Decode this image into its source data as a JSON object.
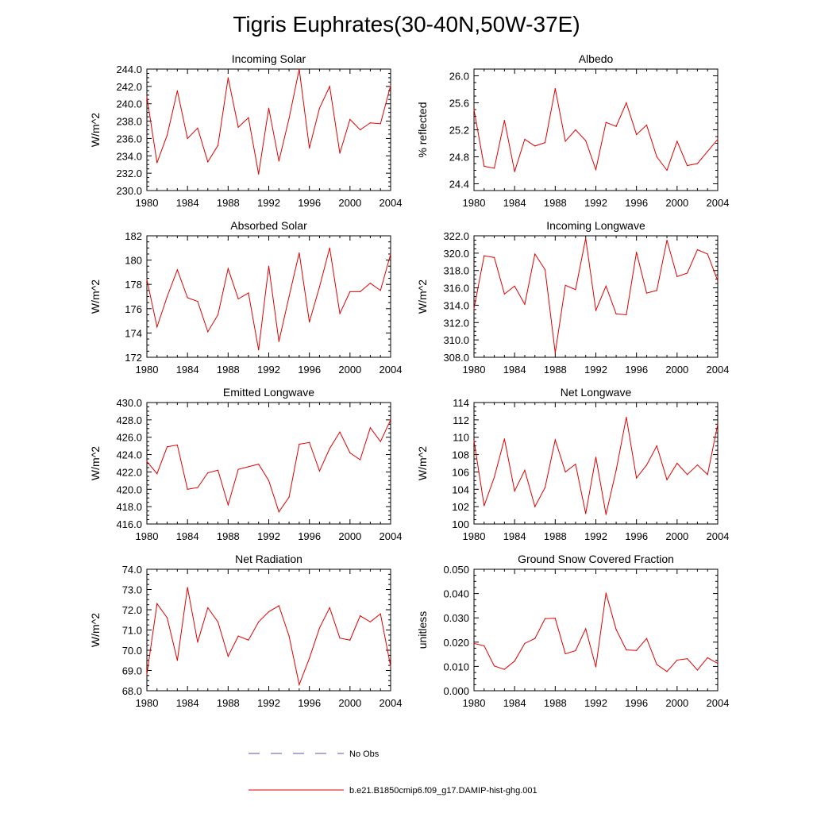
{
  "title": "Tigris Euphrates(30-40N,50W-37E)",
  "legend": {
    "placement": "bottom-center",
    "items": [
      {
        "label": "No Obs",
        "color": "#5555aa",
        "dash": true
      },
      {
        "label": "b.e21.B1850cmip6.f09_g17.DAMIP-hist-ghg.001",
        "color": "#e00000",
        "dash": false
      }
    ]
  },
  "chart_data": [
    {
      "type": "line",
      "title": "Incoming Solar",
      "ylabel": "W/m^2",
      "xlim": [
        1980,
        2004
      ],
      "ylim": [
        230.0,
        244.0
      ],
      "yticks": [
        "230.0",
        "232.0",
        "234.0",
        "236.0",
        "238.0",
        "240.0",
        "242.0",
        "244.0"
      ],
      "xticks": [
        "1980",
        "1984",
        "1988",
        "1992",
        "1996",
        "2000",
        "2004"
      ],
      "x": [
        1980,
        1981,
        1982,
        1983,
        1984,
        1985,
        1986,
        1987,
        1988,
        1989,
        1990,
        1991,
        1992,
        1993,
        1994,
        1995,
        1996,
        1997,
        1998,
        1999,
        2000,
        2001,
        2002,
        2003,
        2004
      ],
      "series": [
        {
          "color": "#e00000",
          "values": [
            240.8,
            233.2,
            236.4,
            241.5,
            236.0,
            237.2,
            233.3,
            235.2,
            243.0,
            237.3,
            238.4,
            231.9,
            239.5,
            233.4,
            238.3,
            244.0,
            234.9,
            239.5,
            242.0,
            234.3,
            238.2,
            237.0,
            237.8,
            237.7,
            242.1
          ]
        }
      ]
    },
    {
      "type": "line",
      "title": "Albedo",
      "ylabel": "% reflected",
      "xlim": [
        1980,
        2004
      ],
      "ylim": [
        24.3,
        26.1
      ],
      "yticks": [
        "24.4",
        "24.8",
        "25.2",
        "25.6",
        "26.0"
      ],
      "xticks": [
        "1980",
        "1984",
        "1988",
        "1992",
        "1996",
        "2000",
        "2004"
      ],
      "x": [
        1980,
        1981,
        1982,
        1983,
        1984,
        1985,
        1986,
        1987,
        1988,
        1989,
        1990,
        1991,
        1992,
        1993,
        1994,
        1995,
        1996,
        1997,
        1998,
        1999,
        2000,
        2001,
        2002,
        2003,
        2004
      ],
      "series": [
        {
          "color": "#e00000",
          "values": [
            25.5,
            24.66,
            24.63,
            25.34,
            24.58,
            25.06,
            24.96,
            25.01,
            25.81,
            25.03,
            25.2,
            25.04,
            24.61,
            25.31,
            25.25,
            25.6,
            25.13,
            25.27,
            24.8,
            24.6,
            25.03,
            24.67,
            24.7,
            24.88,
            25.06
          ]
        }
      ]
    },
    {
      "type": "line",
      "title": "Absorbed Solar",
      "ylabel": "W/m^2",
      "xlim": [
        1980,
        2004
      ],
      "ylim": [
        172,
        182
      ],
      "yticks": [
        "172",
        "174",
        "176",
        "178",
        "180",
        "182"
      ],
      "xticks": [
        "1980",
        "1984",
        "1988",
        "1992",
        "1996",
        "2000",
        "2004"
      ],
      "x": [
        1980,
        1981,
        1982,
        1983,
        1984,
        1985,
        1986,
        1987,
        1988,
        1989,
        1990,
        1991,
        1992,
        1993,
        1994,
        1995,
        1996,
        1997,
        1998,
        1999,
        2000,
        2001,
        2002,
        2003,
        2004
      ],
      "series": [
        {
          "color": "#e00000",
          "values": [
            178.4,
            174.5,
            177.0,
            179.2,
            176.9,
            176.6,
            174.1,
            175.5,
            179.3,
            176.8,
            177.3,
            172.6,
            179.5,
            173.3,
            177.0,
            180.6,
            174.9,
            177.8,
            181.0,
            175.6,
            177.4,
            177.4,
            178.1,
            177.5,
            180.5
          ]
        }
      ]
    },
    {
      "type": "line",
      "title": "Incoming Longwave",
      "ylabel": "W/m^2",
      "xlim": [
        1980,
        2004
      ],
      "ylim": [
        308.0,
        322.0
      ],
      "yticks": [
        "308.0",
        "310.0",
        "312.0",
        "314.0",
        "316.0",
        "318.0",
        "320.0",
        "322.0"
      ],
      "xticks": [
        "1980",
        "1984",
        "1988",
        "1992",
        "1996",
        "2000",
        "2004"
      ],
      "x": [
        1980,
        1981,
        1982,
        1983,
        1984,
        1985,
        1986,
        1987,
        1988,
        1989,
        1990,
        1991,
        1992,
        1993,
        1994,
        1995,
        1996,
        1997,
        1998,
        1999,
        2000,
        2001,
        2002,
        2003,
        2004
      ],
      "series": [
        {
          "color": "#e00000",
          "values": [
            313.6,
            319.7,
            319.5,
            315.3,
            316.2,
            314.1,
            319.9,
            318.1,
            308.5,
            316.3,
            315.8,
            321.7,
            313.4,
            316.2,
            313.0,
            312.9,
            320.1,
            315.4,
            315.7,
            321.5,
            317.3,
            317.7,
            320.4,
            319.9,
            316.8
          ]
        }
      ]
    },
    {
      "type": "line",
      "title": "Emitted Longwave",
      "ylabel": "W/m^2",
      "xlim": [
        1980,
        2004
      ],
      "ylim": [
        416.0,
        430.0
      ],
      "yticks": [
        "416.0",
        "418.0",
        "420.0",
        "422.0",
        "424.0",
        "426.0",
        "428.0",
        "430.0"
      ],
      "xticks": [
        "1980",
        "1984",
        "1988",
        "1992",
        "1996",
        "2000",
        "2004"
      ],
      "x": [
        1980,
        1981,
        1982,
        1983,
        1984,
        1985,
        1986,
        1987,
        1988,
        1989,
        1990,
        1991,
        1992,
        1993,
        1994,
        1995,
        1996,
        1997,
        1998,
        1999,
        2000,
        2001,
        2002,
        2003,
        2004
      ],
      "series": [
        {
          "color": "#e00000",
          "values": [
            423.2,
            421.8,
            424.9,
            425.1,
            420.0,
            420.2,
            421.9,
            422.2,
            418.2,
            422.3,
            422.6,
            422.9,
            421.0,
            417.4,
            419.1,
            425.2,
            425.4,
            422.1,
            424.7,
            426.6,
            424.2,
            423.4,
            427.1,
            425.5,
            428.0
          ]
        }
      ]
    },
    {
      "type": "line",
      "title": "Net Longwave",
      "ylabel": "W/m^2",
      "xlim": [
        1980,
        2004
      ],
      "ylim": [
        100,
        114
      ],
      "yticks": [
        "100",
        "102",
        "104",
        "106",
        "108",
        "110",
        "112",
        "114"
      ],
      "xticks": [
        "1980",
        "1984",
        "1988",
        "1992",
        "1996",
        "2000",
        "2004"
      ],
      "x": [
        1980,
        1981,
        1982,
        1983,
        1984,
        1985,
        1986,
        1987,
        1988,
        1989,
        1990,
        1991,
        1992,
        1993,
        1994,
        1995,
        1996,
        1997,
        1998,
        1999,
        2000,
        2001,
        2002,
        2003,
        2004
      ],
      "series": [
        {
          "color": "#e00000",
          "values": [
            109.6,
            102.1,
            105.4,
            109.8,
            103.8,
            106.2,
            102.0,
            104.2,
            109.7,
            106.0,
            106.9,
            101.2,
            107.7,
            101.1,
            106.2,
            112.3,
            105.3,
            106.8,
            109.0,
            105.1,
            107.0,
            105.7,
            106.8,
            105.7,
            111.5
          ]
        }
      ]
    },
    {
      "type": "line",
      "title": "Net Radiation",
      "ylabel": "W/m^2",
      "xlim": [
        1980,
        2004
      ],
      "ylim": [
        68.0,
        74.0
      ],
      "yticks": [
        "68.0",
        "69.0",
        "70.0",
        "71.0",
        "72.0",
        "73.0",
        "74.0"
      ],
      "xticks": [
        "1980",
        "1984",
        "1988",
        "1992",
        "1996",
        "2000",
        "2004"
      ],
      "x": [
        1980,
        1981,
        1982,
        1983,
        1984,
        1985,
        1986,
        1987,
        1988,
        1989,
        1990,
        1991,
        1992,
        1993,
        1994,
        1995,
        1996,
        1997,
        1998,
        1999,
        2000,
        2001,
        2002,
        2003,
        2004
      ],
      "series": [
        {
          "color": "#e00000",
          "values": [
            68.8,
            72.3,
            71.6,
            69.5,
            73.1,
            70.4,
            72.1,
            71.4,
            69.7,
            70.7,
            70.5,
            71.4,
            71.9,
            72.2,
            70.7,
            68.3,
            69.6,
            71.1,
            72.1,
            70.6,
            70.5,
            71.7,
            71.4,
            71.8,
            69.2
          ]
        }
      ]
    },
    {
      "type": "line",
      "title": "Ground Snow Covered Fraction",
      "ylabel": "unitless",
      "xlim": [
        1980,
        2004
      ],
      "ylim": [
        0.0,
        0.05
      ],
      "yticks": [
        "0.000",
        "0.010",
        "0.020",
        "0.030",
        "0.040",
        "0.050"
      ],
      "xticks": [
        "1980",
        "1984",
        "1988",
        "1992",
        "1996",
        "2000",
        "2004"
      ],
      "x": [
        1980,
        1981,
        1982,
        1983,
        1984,
        1985,
        1986,
        1987,
        1988,
        1989,
        1990,
        1991,
        1992,
        1993,
        1994,
        1995,
        1996,
        1997,
        1998,
        1999,
        2000,
        2001,
        2002,
        2003,
        2004
      ],
      "series": [
        {
          "color": "#e00000",
          "values": [
            0.0195,
            0.0185,
            0.0102,
            0.0088,
            0.0122,
            0.0195,
            0.0215,
            0.0297,
            0.0298,
            0.0152,
            0.0165,
            0.0255,
            0.0098,
            0.0402,
            0.0252,
            0.0168,
            0.0166,
            0.0215,
            0.0108,
            0.0079,
            0.0126,
            0.0132,
            0.0085,
            0.0136,
            0.0112
          ]
        }
      ]
    }
  ]
}
